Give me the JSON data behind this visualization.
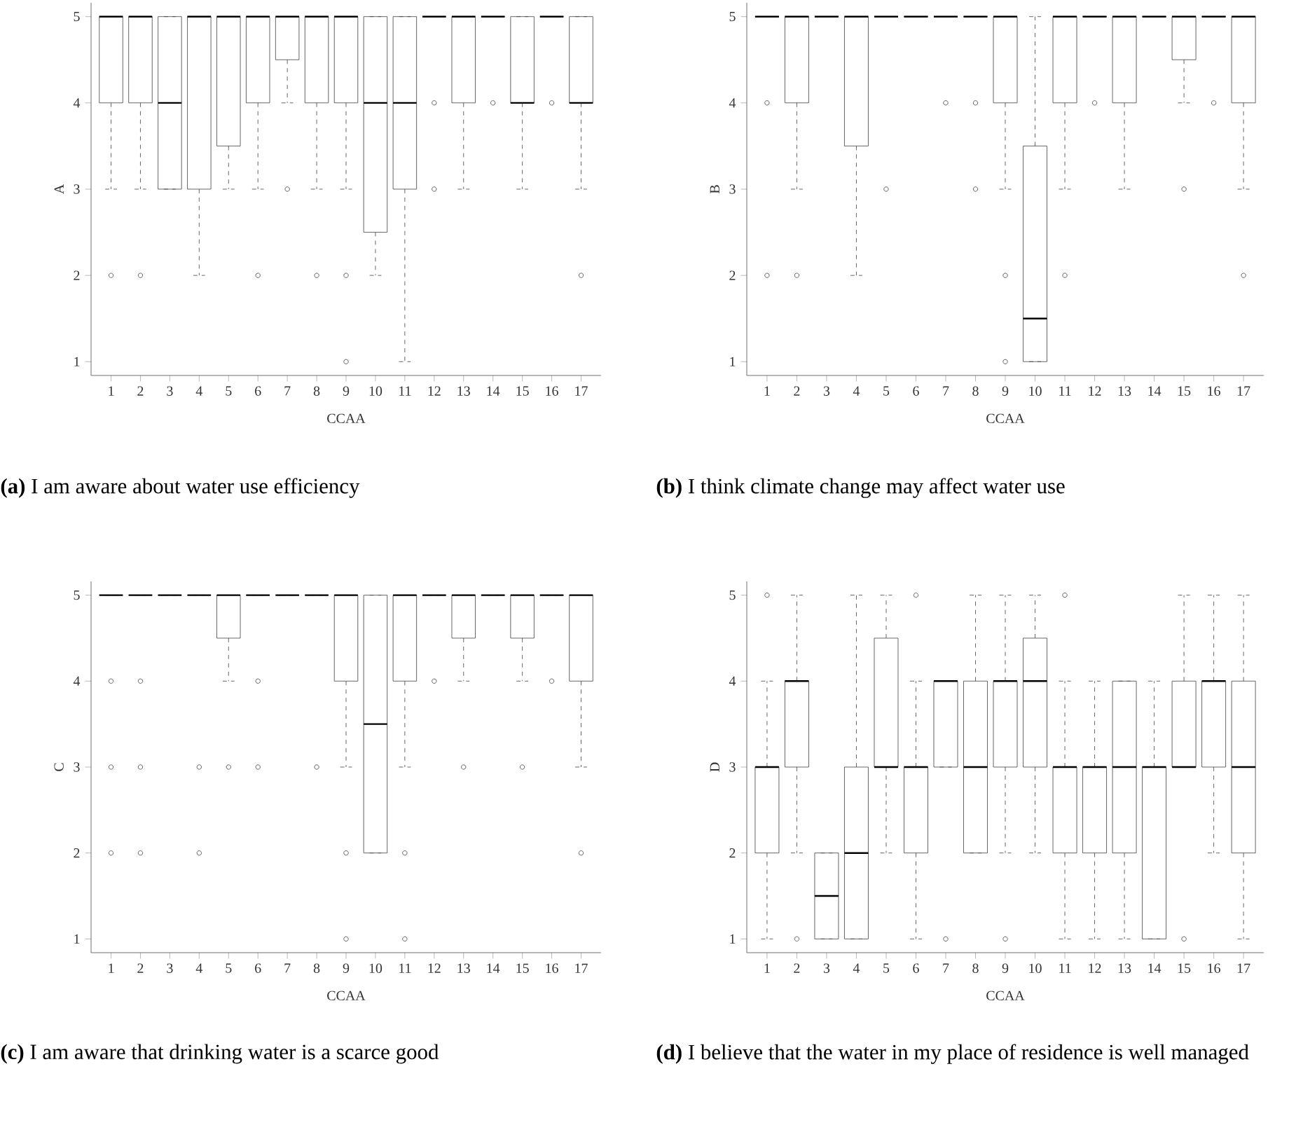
{
  "chart_data": [
    {
      "type": "box",
      "title": "**(a)** I am aware about water use efficiency",
      "xlabel": "CCAA",
      "ylabel": "A",
      "categories": [
        "1",
        "2",
        "3",
        "4",
        "5",
        "6",
        "7",
        "8",
        "9",
        "10",
        "11",
        "12",
        "13",
        "14",
        "15",
        "16",
        "17"
      ],
      "ylim": [
        0.84,
        5.16
      ],
      "yticks": [
        1,
        2,
        3,
        4,
        5
      ],
      "boxes": [
        {
          "low": 3,
          "q1": 4,
          "median": 5,
          "q3": 5,
          "high": 5,
          "outliers": [
            2
          ]
        },
        {
          "low": 3,
          "q1": 4,
          "median": 5,
          "q3": 5,
          "high": 5,
          "outliers": [
            2
          ]
        },
        {
          "low": 3,
          "q1": 3,
          "median": 4,
          "q3": 5,
          "high": 5
        },
        {
          "low": 2,
          "q1": 3,
          "median": 5,
          "q3": 5,
          "high": 5
        },
        {
          "low": 3,
          "q1": 3.5,
          "median": 5,
          "q3": 5,
          "high": 5
        },
        {
          "low": 3,
          "q1": 4,
          "median": 5,
          "q3": 5,
          "high": 5,
          "outliers": [
            2
          ]
        },
        {
          "low": 4,
          "q1": 4.5,
          "median": 5,
          "q3": 5,
          "high": 5,
          "outliers": [
            3
          ]
        },
        {
          "low": 3,
          "q1": 4,
          "median": 5,
          "q3": 5,
          "high": 5,
          "outliers": [
            2
          ]
        },
        {
          "low": 3,
          "q1": 4,
          "median": 5,
          "q3": 5,
          "high": 5,
          "outliers": [
            2,
            1
          ]
        },
        {
          "low": 2,
          "q1": 2.5,
          "median": 4,
          "q3": 5,
          "high": 5
        },
        {
          "low": 1,
          "q1": 3,
          "median": 4,
          "q3": 5,
          "high": 5
        },
        {
          "low": 5,
          "q1": 5,
          "median": 5,
          "q3": 5,
          "high": 5,
          "outliers": [
            4,
            3
          ]
        },
        {
          "low": 3,
          "q1": 4,
          "median": 5,
          "q3": 5,
          "high": 5
        },
        {
          "low": 5,
          "q1": 5,
          "median": 5,
          "q3": 5,
          "high": 5,
          "outliers": [
            4
          ]
        },
        {
          "low": 3,
          "q1": 4,
          "median": 4,
          "q3": 5,
          "high": 5
        },
        {
          "low": 5,
          "q1": 5,
          "median": 5,
          "q3": 5,
          "high": 5,
          "outliers": [
            4
          ]
        },
        {
          "low": 3,
          "q1": 4,
          "median": 4,
          "q3": 5,
          "high": 5,
          "outliers": [
            2
          ]
        }
      ]
    },
    {
      "type": "box",
      "title": "**(b)** I think climate change may affect water use",
      "xlabel": "CCAA",
      "ylabel": "B",
      "categories": [
        "1",
        "2",
        "3",
        "4",
        "5",
        "6",
        "7",
        "8",
        "9",
        "10",
        "11",
        "12",
        "13",
        "14",
        "15",
        "16",
        "17"
      ],
      "ylim": [
        0.84,
        5.16
      ],
      "yticks": [
        1,
        2,
        3,
        4,
        5
      ],
      "boxes": [
        {
          "low": 5,
          "q1": 5,
          "median": 5,
          "q3": 5,
          "high": 5,
          "outliers": [
            4,
            2
          ]
        },
        {
          "low": 3,
          "q1": 4,
          "median": 5,
          "q3": 5,
          "high": 5,
          "outliers": [
            2
          ]
        },
        {
          "low": 5,
          "q1": 5,
          "median": 5,
          "q3": 5,
          "high": 5
        },
        {
          "low": 2,
          "q1": 3.5,
          "median": 5,
          "q3": 5,
          "high": 5
        },
        {
          "low": 5,
          "q1": 5,
          "median": 5,
          "q3": 5,
          "high": 5,
          "outliers": [
            3
          ]
        },
        {
          "low": 5,
          "q1": 5,
          "median": 5,
          "q3": 5,
          "high": 5
        },
        {
          "low": 5,
          "q1": 5,
          "median": 5,
          "q3": 5,
          "high": 5,
          "outliers": [
            4
          ]
        },
        {
          "low": 5,
          "q1": 5,
          "median": 5,
          "q3": 5,
          "high": 5,
          "outliers": [
            4,
            3
          ]
        },
        {
          "low": 3,
          "q1": 4,
          "median": 5,
          "q3": 5,
          "high": 5,
          "outliers": [
            2,
            1
          ]
        },
        {
          "low": 1,
          "q1": 1,
          "median": 1.5,
          "q3": 3.5,
          "high": 5
        },
        {
          "low": 3,
          "q1": 4,
          "median": 5,
          "q3": 5,
          "high": 5,
          "outliers": [
            2
          ]
        },
        {
          "low": 5,
          "q1": 5,
          "median": 5,
          "q3": 5,
          "high": 5,
          "outliers": [
            4
          ]
        },
        {
          "low": 3,
          "q1": 4,
          "median": 5,
          "q3": 5,
          "high": 5
        },
        {
          "low": 5,
          "q1": 5,
          "median": 5,
          "q3": 5,
          "high": 5
        },
        {
          "low": 4,
          "q1": 4.5,
          "median": 5,
          "q3": 5,
          "high": 5,
          "outliers": [
            3
          ]
        },
        {
          "low": 5,
          "q1": 5,
          "median": 5,
          "q3": 5,
          "high": 5,
          "outliers": [
            4
          ]
        },
        {
          "low": 3,
          "q1": 4,
          "median": 5,
          "q3": 5,
          "high": 5,
          "outliers": [
            2
          ]
        }
      ]
    },
    {
      "type": "box",
      "title": "**(c)** I am aware that drinking water is a scarce good",
      "xlabel": "CCAA",
      "ylabel": "C",
      "categories": [
        "1",
        "2",
        "3",
        "4",
        "5",
        "6",
        "7",
        "8",
        "9",
        "10",
        "11",
        "12",
        "13",
        "14",
        "15",
        "16",
        "17"
      ],
      "ylim": [
        0.84,
        5.16
      ],
      "yticks": [
        1,
        2,
        3,
        4,
        5
      ],
      "boxes": [
        {
          "low": 5,
          "q1": 5,
          "median": 5,
          "q3": 5,
          "high": 5,
          "outliers": [
            4,
            3,
            2
          ]
        },
        {
          "low": 5,
          "q1": 5,
          "median": 5,
          "q3": 5,
          "high": 5,
          "outliers": [
            4,
            3,
            2
          ]
        },
        {
          "low": 5,
          "q1": 5,
          "median": 5,
          "q3": 5,
          "high": 5
        },
        {
          "low": 5,
          "q1": 5,
          "median": 5,
          "q3": 5,
          "high": 5,
          "outliers": [
            3,
            2
          ]
        },
        {
          "low": 4,
          "q1": 4.5,
          "median": 5,
          "q3": 5,
          "high": 5,
          "outliers": [
            3
          ]
        },
        {
          "low": 5,
          "q1": 5,
          "median": 5,
          "q3": 5,
          "high": 5,
          "outliers": [
            4,
            3
          ]
        },
        {
          "low": 5,
          "q1": 5,
          "median": 5,
          "q3": 5,
          "high": 5
        },
        {
          "low": 5,
          "q1": 5,
          "median": 5,
          "q3": 5,
          "high": 5,
          "outliers": [
            3
          ]
        },
        {
          "low": 3,
          "q1": 4,
          "median": 5,
          "q3": 5,
          "high": 5,
          "outliers": [
            2,
            1
          ]
        },
        {
          "low": 2,
          "q1": 2,
          "median": 3.5,
          "q3": 5,
          "high": 5
        },
        {
          "low": 3,
          "q1": 4,
          "median": 5,
          "q3": 5,
          "high": 5,
          "outliers": [
            2,
            1
          ]
        },
        {
          "low": 5,
          "q1": 5,
          "median": 5,
          "q3": 5,
          "high": 5,
          "outliers": [
            4
          ]
        },
        {
          "low": 4,
          "q1": 4.5,
          "median": 5,
          "q3": 5,
          "high": 5,
          "outliers": [
            3
          ]
        },
        {
          "low": 5,
          "q1": 5,
          "median": 5,
          "q3": 5,
          "high": 5
        },
        {
          "low": 4,
          "q1": 4.5,
          "median": 5,
          "q3": 5,
          "high": 5,
          "outliers": [
            3
          ]
        },
        {
          "low": 5,
          "q1": 5,
          "median": 5,
          "q3": 5,
          "high": 5,
          "outliers": [
            4
          ]
        },
        {
          "low": 3,
          "q1": 4,
          "median": 5,
          "q3": 5,
          "high": 5,
          "outliers": [
            2
          ]
        }
      ]
    },
    {
      "type": "box",
      "title": "**(d)** I believe that the water in my place of residence is well managed",
      "xlabel": "CCAA",
      "ylabel": "D",
      "categories": [
        "1",
        "2",
        "3",
        "4",
        "5",
        "6",
        "7",
        "8",
        "9",
        "10",
        "11",
        "12",
        "13",
        "14",
        "15",
        "16",
        "17"
      ],
      "ylim": [
        0.84,
        5.16
      ],
      "yticks": [
        1,
        2,
        3,
        4,
        5
      ],
      "boxes": [
        {
          "low": 1,
          "q1": 2,
          "median": 3,
          "q3": 3,
          "high": 4,
          "outliers": [
            5
          ]
        },
        {
          "low": 2,
          "q1": 3,
          "median": 4,
          "q3": 4,
          "high": 5,
          "outliers": [
            1
          ]
        },
        {
          "low": 1,
          "q1": 1,
          "median": 1.5,
          "q3": 2,
          "high": 2
        },
        {
          "low": 1,
          "q1": 1,
          "median": 2,
          "q3": 3,
          "high": 5
        },
        {
          "low": 2,
          "q1": 3,
          "median": 3,
          "q3": 4.5,
          "high": 5
        },
        {
          "low": 1,
          "q1": 2,
          "median": 3,
          "q3": 3,
          "high": 4,
          "outliers": [
            5
          ]
        },
        {
          "low": 3,
          "q1": 3,
          "median": 4,
          "q3": 4,
          "high": 4,
          "outliers": [
            1
          ]
        },
        {
          "low": 2,
          "q1": 2,
          "median": 3,
          "q3": 4,
          "high": 5
        },
        {
          "low": 2,
          "q1": 3,
          "median": 4,
          "q3": 4,
          "high": 5,
          "outliers": [
            1
          ]
        },
        {
          "low": 2,
          "q1": 3,
          "median": 4,
          "q3": 4.5,
          "high": 5
        },
        {
          "low": 1,
          "q1": 2,
          "median": 3,
          "q3": 3,
          "high": 4,
          "outliers": [
            5
          ]
        },
        {
          "low": 1,
          "q1": 2,
          "median": 3,
          "q3": 3,
          "high": 4
        },
        {
          "low": 1,
          "q1": 2,
          "median": 3,
          "q3": 4,
          "high": 4
        },
        {
          "low": 1,
          "q1": 1,
          "median": 3,
          "q3": 3,
          "high": 4
        },
        {
          "low": 3,
          "q1": 3,
          "median": 3,
          "q3": 4,
          "high": 5,
          "outliers": [
            1
          ]
        },
        {
          "low": 2,
          "q1": 3,
          "median": 4,
          "q3": 4,
          "high": 5
        },
        {
          "low": 1,
          "q1": 2,
          "median": 3,
          "q3": 4,
          "high": 5
        }
      ]
    }
  ]
}
